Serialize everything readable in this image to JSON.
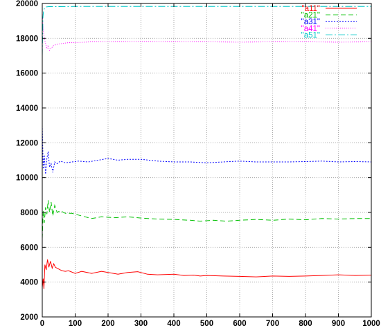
{
  "chart_data": {
    "type": "line",
    "title": "",
    "xlabel": "",
    "ylabel": "",
    "xlim": [
      0,
      1000
    ],
    "ylim": [
      2000,
      20000
    ],
    "xticks": [
      "0",
      "100",
      "200",
      "300",
      "400",
      "500",
      "600",
      "700",
      "800",
      "900",
      "1000"
    ],
    "yticks": [
      "2000",
      "4000",
      "6000",
      "8000",
      "10000",
      "12000",
      "14000",
      "16000",
      "18000",
      "20000"
    ],
    "grid": true,
    "legend_position": "top-right",
    "series": [
      {
        "name": "\"a11\"",
        "color": "#ff0000",
        "dash": "solid",
        "points": [
          [
            0,
            3700
          ],
          [
            3,
            4200
          ],
          [
            5,
            3600
          ],
          [
            8,
            5000
          ],
          [
            12,
            4700
          ],
          [
            16,
            5300
          ],
          [
            20,
            4850
          ],
          [
            25,
            5200
          ],
          [
            30,
            4800
          ],
          [
            35,
            5050
          ],
          [
            40,
            4850
          ],
          [
            50,
            4750
          ],
          [
            60,
            4650
          ],
          [
            70,
            4620
          ],
          [
            80,
            4650
          ],
          [
            100,
            4500
          ],
          [
            120,
            4620
          ],
          [
            150,
            4500
          ],
          [
            180,
            4620
          ],
          [
            200,
            4550
          ],
          [
            230,
            4450
          ],
          [
            260,
            4550
          ],
          [
            290,
            4600
          ],
          [
            320,
            4450
          ],
          [
            350,
            4420
          ],
          [
            400,
            4450
          ],
          [
            430,
            4380
          ],
          [
            460,
            4400
          ],
          [
            480,
            4350
          ],
          [
            500,
            4380
          ],
          [
            550,
            4350
          ],
          [
            600,
            4330
          ],
          [
            650,
            4300
          ],
          [
            700,
            4350
          ],
          [
            750,
            4330
          ],
          [
            800,
            4350
          ],
          [
            850,
            4380
          ],
          [
            900,
            4420
          ],
          [
            950,
            4380
          ],
          [
            1000,
            4400
          ]
        ]
      },
      {
        "name": "\"a21\"",
        "color": "#00c000",
        "dash": "7,4",
        "points": [
          [
            0,
            6500
          ],
          [
            3,
            8100
          ],
          [
            6,
            7400
          ],
          [
            10,
            8300
          ],
          [
            14,
            7900
          ],
          [
            18,
            8700
          ],
          [
            22,
            8000
          ],
          [
            27,
            8600
          ],
          [
            32,
            7800
          ],
          [
            38,
            8400
          ],
          [
            45,
            8000
          ],
          [
            55,
            8100
          ],
          [
            70,
            7950
          ],
          [
            90,
            7950
          ],
          [
            110,
            7850
          ],
          [
            130,
            7750
          ],
          [
            150,
            7650
          ],
          [
            180,
            7750
          ],
          [
            220,
            7700
          ],
          [
            260,
            7750
          ],
          [
            300,
            7680
          ],
          [
            350,
            7620
          ],
          [
            400,
            7600
          ],
          [
            450,
            7550
          ],
          [
            480,
            7500
          ],
          [
            520,
            7550
          ],
          [
            560,
            7500
          ],
          [
            600,
            7550
          ],
          [
            650,
            7600
          ],
          [
            700,
            7550
          ],
          [
            750,
            7620
          ],
          [
            800,
            7580
          ],
          [
            850,
            7650
          ],
          [
            900,
            7620
          ],
          [
            950,
            7650
          ],
          [
            1000,
            7650
          ]
        ]
      },
      {
        "name": "\"a31\"",
        "color": "#0000ff",
        "dash": "2,2",
        "points": [
          [
            0,
            13000
          ],
          [
            3,
            10500
          ],
          [
            6,
            11300
          ],
          [
            10,
            10200
          ],
          [
            14,
            11100
          ],
          [
            18,
            11500
          ],
          [
            22,
            10600
          ],
          [
            27,
            10800
          ],
          [
            32,
            10300
          ],
          [
            38,
            10900
          ],
          [
            45,
            10800
          ],
          [
            55,
            10950
          ],
          [
            70,
            10850
          ],
          [
            90,
            10900
          ],
          [
            110,
            10950
          ],
          [
            140,
            10900
          ],
          [
            170,
            11000
          ],
          [
            200,
            11100
          ],
          [
            230,
            11000
          ],
          [
            260,
            11050
          ],
          [
            300,
            11050
          ],
          [
            350,
            10950
          ],
          [
            400,
            10900
          ],
          [
            450,
            10900
          ],
          [
            500,
            10850
          ],
          [
            550,
            10900
          ],
          [
            600,
            10950
          ],
          [
            650,
            10900
          ],
          [
            700,
            10900
          ],
          [
            750,
            10900
          ],
          [
            800,
            10920
          ],
          [
            850,
            10950
          ],
          [
            900,
            10900
          ],
          [
            950,
            10920
          ],
          [
            1000,
            10900
          ]
        ]
      },
      {
        "name": "\"a41\"",
        "color": "#ff00ff",
        "dash": "1,2",
        "points": [
          [
            0,
            19500
          ],
          [
            3,
            18500
          ],
          [
            6,
            18000
          ],
          [
            10,
            17700
          ],
          [
            14,
            17400
          ],
          [
            18,
            17600
          ],
          [
            22,
            17300
          ],
          [
            28,
            17450
          ],
          [
            35,
            17600
          ],
          [
            45,
            17650
          ],
          [
            60,
            17700
          ],
          [
            80,
            17750
          ],
          [
            100,
            17750
          ],
          [
            150,
            17800
          ],
          [
            200,
            17800
          ],
          [
            300,
            17820
          ],
          [
            400,
            17800
          ],
          [
            500,
            17800
          ],
          [
            600,
            17780
          ],
          [
            700,
            17800
          ],
          [
            800,
            17800
          ],
          [
            900,
            17780
          ],
          [
            1000,
            17800
          ]
        ]
      },
      {
        "name": "\"a51\"",
        "color": "#00c8c8",
        "dash": "10,3,2,3",
        "points": [
          [
            0,
            17000
          ],
          [
            2,
            19200
          ],
          [
            4,
            19600
          ],
          [
            7,
            19750
          ],
          [
            12,
            19800
          ],
          [
            20,
            19820
          ],
          [
            50,
            19820
          ],
          [
            100,
            19830
          ],
          [
            200,
            19830
          ],
          [
            400,
            19830
          ],
          [
            600,
            19830
          ],
          [
            800,
            19830
          ],
          [
            1000,
            19830
          ]
        ]
      }
    ]
  }
}
